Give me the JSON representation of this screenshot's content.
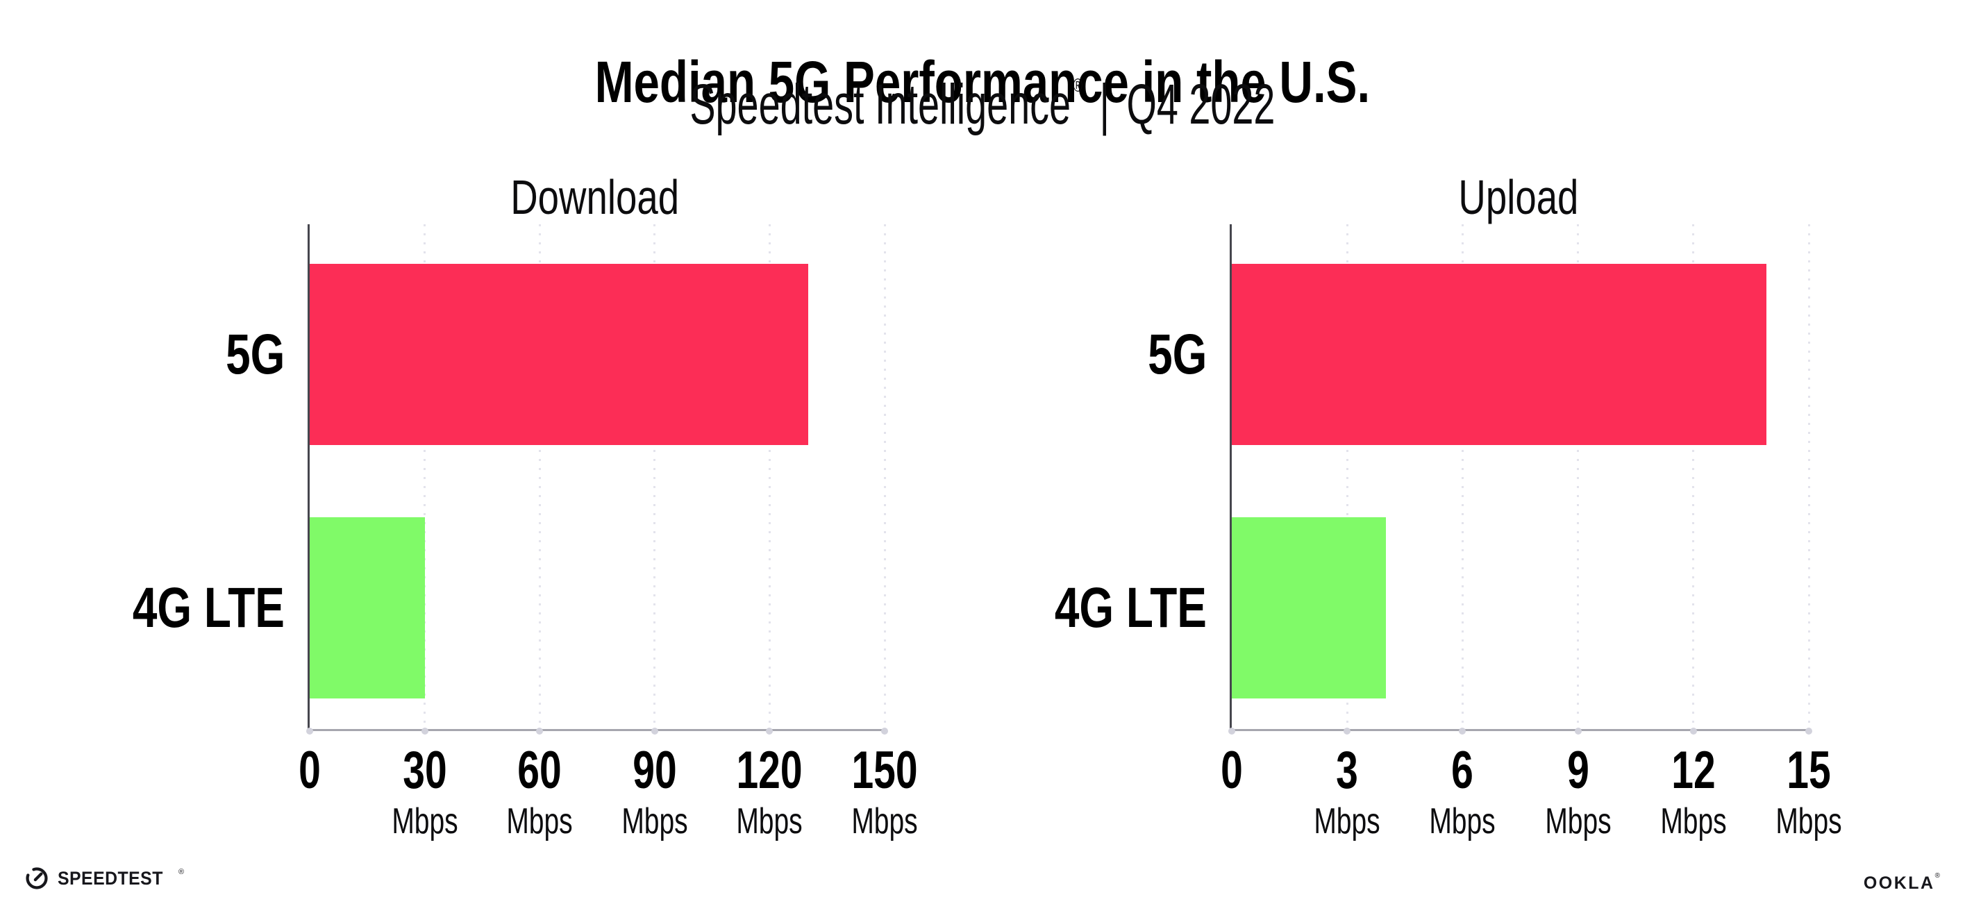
{
  "header": {
    "title": "Median 5G Performance in the U.S.",
    "subtitle_brand": "Speedtest Intelligence",
    "subtitle_reg": "®",
    "subtitle_sep": "|",
    "subtitle_period": "Q4 2022"
  },
  "chart_data": [
    {
      "type": "bar",
      "orientation": "horizontal",
      "title": "Download",
      "categories": [
        "5G",
        "4G LTE"
      ],
      "values": [
        130,
        30
      ],
      "value_unit": "Mbps",
      "xlim": [
        0,
        150
      ],
      "xticks": [
        0,
        30,
        60,
        90,
        120,
        150
      ],
      "xtick_unit": "Mbps",
      "bar_colors": [
        "#fc2d56",
        "#80fa68"
      ],
      "grid": "vertical-dotted",
      "legend": "none"
    },
    {
      "type": "bar",
      "orientation": "horizontal",
      "title": "Upload",
      "categories": [
        "5G",
        "4G LTE"
      ],
      "values": [
        13.9,
        4
      ],
      "value_unit": "Mbps",
      "xlim": [
        0,
        15
      ],
      "xticks": [
        0,
        3,
        6,
        9,
        12,
        15
      ],
      "xtick_unit": "Mbps",
      "bar_colors": [
        "#fc2d56",
        "#80fa68"
      ],
      "grid": "vertical-dotted",
      "legend": "none"
    }
  ],
  "footer": {
    "speedtest_text": "SPEEDTEST",
    "speedtest_mark": "®",
    "ookla_text": "OOKLA",
    "ookla_mark": "®"
  },
  "colors": {
    "bar_5g": "#fc2d56",
    "bar_4g_lte": "#80fa68",
    "gridline": "#e3e3ec",
    "axis_bottom": "#a6a6ae",
    "axis_left": "#46464e",
    "text": "#000000",
    "background": "#ffffff"
  }
}
